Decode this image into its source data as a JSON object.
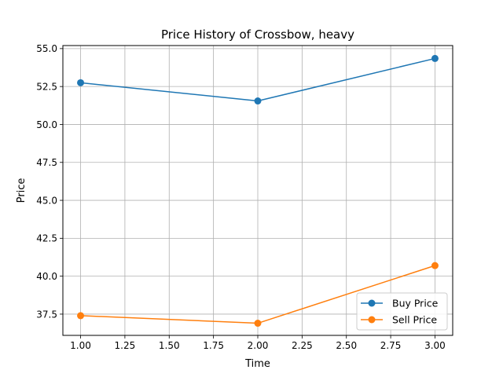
{
  "chart_data": {
    "type": "line",
    "title": "Price History of Crossbow, heavy",
    "xlabel": "Time",
    "ylabel": "Price",
    "x": [
      1.0,
      2.0,
      3.0
    ],
    "xlim": [
      0.9,
      3.1
    ],
    "ylim": [
      36.1,
      55.2
    ],
    "xticks": [
      1.0,
      1.25,
      1.5,
      1.75,
      2.0,
      2.25,
      2.5,
      2.75,
      3.0
    ],
    "xtick_labels": [
      "1.00",
      "1.25",
      "1.50",
      "1.75",
      "2.00",
      "2.25",
      "2.50",
      "2.75",
      "3.00"
    ],
    "yticks": [
      37.5,
      40.0,
      42.5,
      45.0,
      47.5,
      50.0,
      52.5,
      55.0
    ],
    "ytick_labels": [
      "37.5",
      "40.0",
      "42.5",
      "45.0",
      "47.5",
      "50.0",
      "52.5",
      "55.0"
    ],
    "grid": true,
    "legend_position": "lower-right",
    "series": [
      {
        "name": "Buy Price",
        "color": "#1f77b4",
        "marker": "circle",
        "values": [
          52.75,
          51.55,
          54.35
        ]
      },
      {
        "name": "Sell Price",
        "color": "#ff7f0e",
        "marker": "circle",
        "values": [
          37.4,
          36.9,
          40.7
        ]
      }
    ]
  }
}
